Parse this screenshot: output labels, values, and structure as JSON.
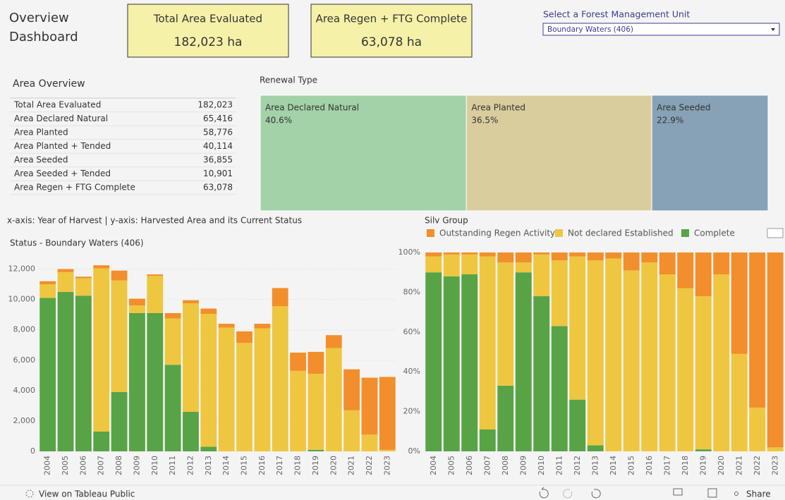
{
  "header": {
    "title_line1": "Overview",
    "title_line2": "Dashboard"
  },
  "kpis": [
    {
      "label": "Total Area Evaluated",
      "value": "182,023 ha"
    },
    {
      "label": "Area Regen + FTG Complete",
      "value": "63,078 ha"
    }
  ],
  "filter": {
    "label": "Select a Forest Management Unit",
    "selected": "Boundary Waters (406)"
  },
  "table": {
    "title": "Area Overview",
    "rows": [
      [
        "Total Area Evaluated",
        "182,023"
      ],
      [
        "Area Declared Natural",
        "65,416"
      ],
      [
        "Area Planted",
        "58,776"
      ],
      [
        "Area Planted + Tended",
        "40,114"
      ],
      [
        "Area Seeded",
        "36,855"
      ],
      [
        "Area Seeded + Tended",
        "10,901"
      ],
      [
        "Area Regen + FTG Complete",
        "63,078"
      ]
    ]
  },
  "caption": "x-axis: Year of Harvest | y-axis: Harvested Area and its Current Status",
  "chart_data": [
    {
      "type": "treemap",
      "title": "Renewal Type",
      "categories": [
        "Area Declared Natural",
        "Area Planted",
        "Area Seeded"
      ],
      "values": [
        40.6,
        36.5,
        22.9
      ],
      "value_labels": [
        "40.6%",
        "36.5%",
        "22.9%"
      ],
      "colors": [
        "#a3d2a9",
        "#d9cd9e",
        "#87a2b6"
      ]
    },
    {
      "type": "stacked_bar",
      "title": "Status - Boundary Waters (406)",
      "categories": [
        "2004",
        "2005",
        "2006",
        "2007",
        "2008",
        "2009",
        "2010",
        "2011",
        "2012",
        "2013",
        "2014",
        "2015",
        "2016",
        "2017",
        "2018",
        "2019",
        "2020",
        "2021",
        "2022",
        "2023"
      ],
      "series": [
        {
          "color": "#f28e2b",
          "values": [
            200,
            200,
            100,
            200,
            650,
            450,
            100,
            350,
            200,
            350,
            250,
            750,
            300,
            1200,
            1200,
            1450,
            850,
            2700,
            3750,
            4800
          ]
        },
        {
          "color": "#efc63f",
          "values": [
            900,
            1300,
            1150,
            10750,
            7350,
            500,
            2450,
            3050,
            7150,
            8750,
            8150,
            7150,
            8100,
            9550,
            5300,
            5000,
            6800,
            2700,
            1100,
            100
          ]
        },
        {
          "color": "#58a346",
          "values": [
            10100,
            10500,
            10250,
            1300,
            3900,
            9100,
            9100,
            5700,
            2600,
            300,
            0,
            0,
            0,
            0,
            0,
            100,
            0,
            0,
            0,
            0
          ]
        }
      ],
      "ylim": [
        0,
        13000
      ],
      "yticks": [
        0,
        {
          "value": 2000,
          "label": "2,000"
        },
        {
          "value": 4000,
          "label": "4,000"
        },
        {
          "value": 6000,
          "label": "6,000"
        },
        {
          "value": 8000,
          "label": "8,000"
        },
        {
          "value": 10000,
          "label": "10,000"
        },
        {
          "value": 12000,
          "label": "12,000"
        }
      ],
      "grid": true
    },
    {
      "type": "stacked_bar",
      "title": "Silv Group",
      "categories": [
        "2004",
        "2005",
        "2006",
        "2007",
        "2008",
        "2009",
        "2010",
        "2011",
        "2012",
        "2013",
        "2014",
        "2015",
        "2016",
        "2017",
        "2018",
        "2019",
        "2020",
        "2021",
        "2022",
        "2023"
      ],
      "series": [
        {
          "name": "Outstanding Regen Activity",
          "color": "#f28e2b",
          "values": [
            2,
            1,
            1,
            2,
            5,
            5,
            1,
            4,
            2,
            4,
            3,
            9,
            5,
            11,
            18,
            22,
            11,
            51,
            78,
            98
          ]
        },
        {
          "name": "Not declared Established",
          "color": "#efc63f",
          "values": [
            8,
            11,
            10,
            87,
            62,
            5,
            21,
            33,
            72,
            93,
            97,
            91,
            95,
            89,
            82,
            77,
            89,
            49,
            22,
            2
          ]
        },
        {
          "name": "Complete",
          "color": "#58a346",
          "values": [
            90,
            88,
            89,
            11,
            33,
            90,
            78,
            63,
            26,
            3,
            0,
            0,
            0,
            0,
            0,
            1,
            0,
            0,
            0,
            0
          ]
        }
      ],
      "ylim": [
        0,
        100
      ],
      "yticks": [
        {
          "value": 0,
          "label": "0%"
        },
        {
          "value": 20,
          "label": "20%"
        },
        {
          "value": 40,
          "label": "40%"
        },
        {
          "value": 60,
          "label": "60%"
        },
        {
          "value": 80,
          "label": "80%"
        },
        {
          "value": 100,
          "label": "100%"
        }
      ],
      "grid": false,
      "legend": "top"
    }
  ],
  "toolbar": {
    "link": "View on Tableau Public",
    "share": "Share"
  }
}
